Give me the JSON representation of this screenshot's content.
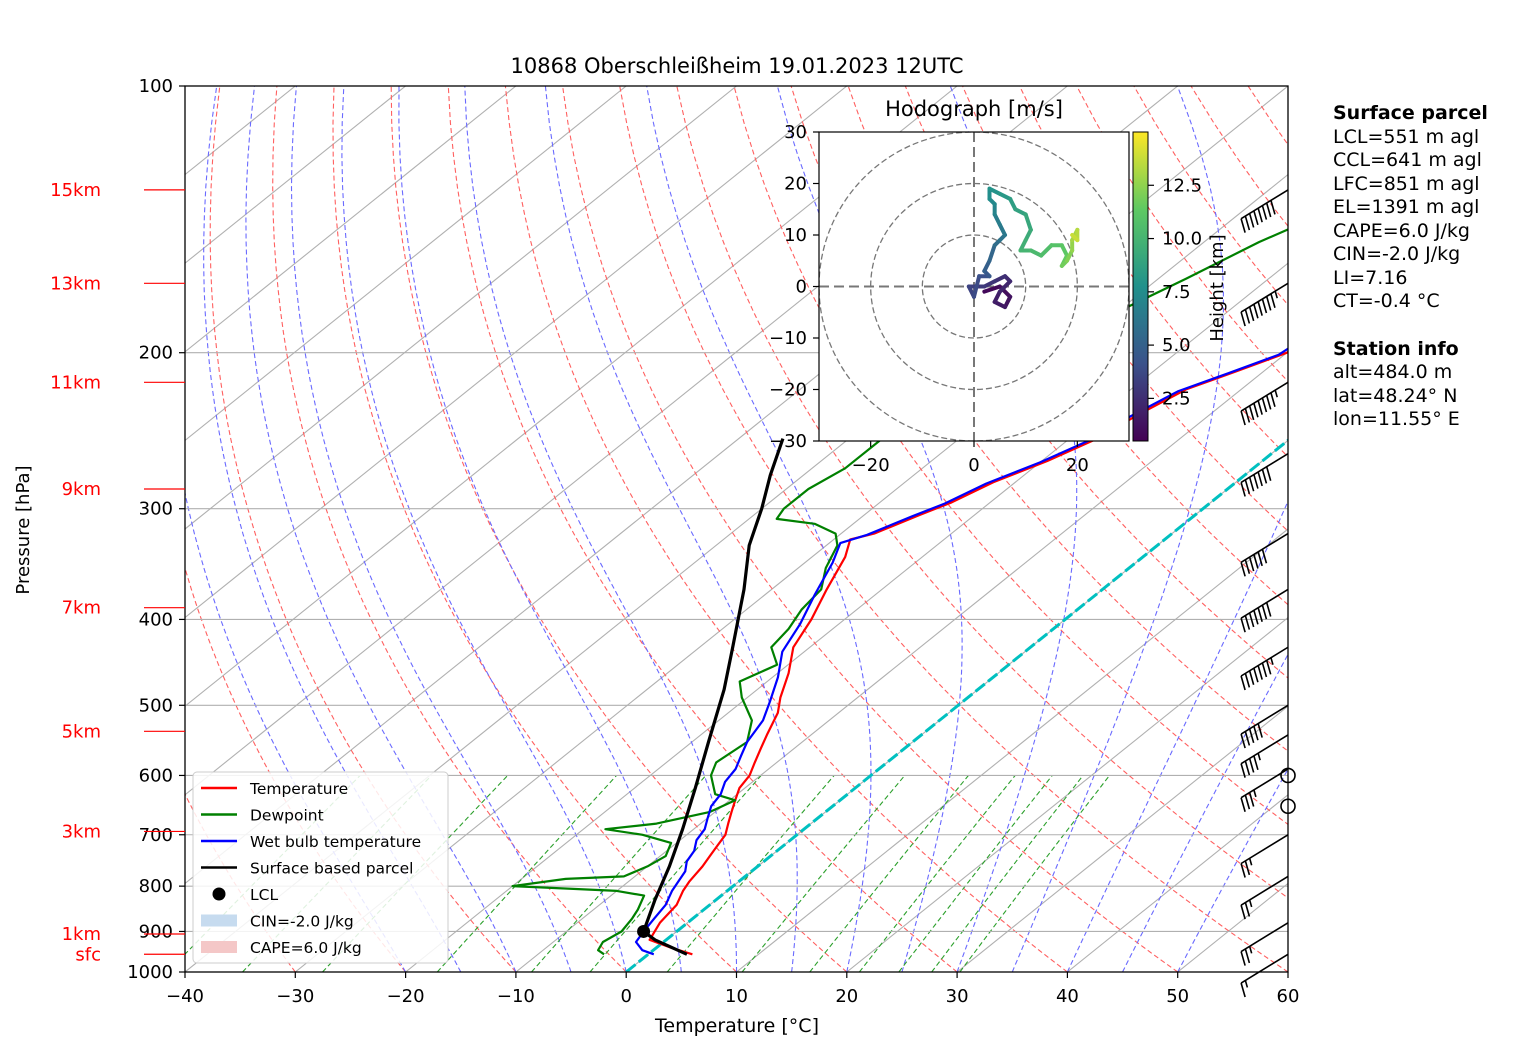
{
  "chart_data": {
    "type": "skew-t log-p",
    "title": "10868 Oberschleißheim 19.01.2023 12UTC",
    "xlabel": "Temperature [°C]",
    "ylabel": "Pressure [hPa]",
    "xlim": [
      -40,
      60
    ],
    "ylim": [
      1000,
      100
    ],
    "y_scale": "log",
    "x_ticks": [
      "−40",
      "−30",
      "−20",
      "−10",
      "0",
      "10",
      "20",
      "30",
      "40",
      "50",
      "60"
    ],
    "y_ticks": [
      "100",
      "200",
      "300",
      "400",
      "500",
      "600",
      "700",
      "800",
      "900",
      "1000"
    ],
    "height_labels": [
      {
        "label": "15km",
        "p": 131
      },
      {
        "label": "13km",
        "p": 167
      },
      {
        "label": "11km",
        "p": 216
      },
      {
        "label": "9km",
        "p": 285
      },
      {
        "label": "7km",
        "p": 388
      },
      {
        "label": "5km",
        "p": 535
      },
      {
        "label": "3km",
        "p": 694
      },
      {
        "label": "1km",
        "p": 906
      },
      {
        "label": "sfc",
        "p": 955
      }
    ],
    "series": [
      {
        "name": "Temperature",
        "color": "#ff0000",
        "points": [
          [
            4,
            955
          ],
          [
            1.5,
            940
          ],
          [
            -1.5,
            920
          ],
          [
            -2.5,
            880
          ],
          [
            -3,
            840
          ],
          [
            -4,
            810
          ],
          [
            -4.5,
            790
          ],
          [
            -5,
            760
          ],
          [
            -5.5,
            740
          ],
          [
            -6,
            720
          ],
          [
            -6.5,
            700
          ],
          [
            -7.5,
            680
          ],
          [
            -8.5,
            660
          ],
          [
            -9.5,
            640
          ],
          [
            -10.5,
            620
          ],
          [
            -11,
            600
          ],
          [
            -12,
            580
          ],
          [
            -13,
            560
          ],
          [
            -14,
            540
          ],
          [
            -15.5,
            510
          ],
          [
            -17,
            490
          ],
          [
            -19,
            460
          ],
          [
            -21.5,
            430
          ],
          [
            -23,
            400
          ],
          [
            -25,
            370
          ],
          [
            -27,
            340
          ],
          [
            -28.5,
            325
          ],
          [
            -27,
            320
          ],
          [
            -25,
            305
          ],
          [
            -23.5,
            295
          ],
          [
            -22,
            280
          ],
          [
            -19.5,
            265
          ],
          [
            -17.5,
            250
          ],
          [
            -16.5,
            235
          ],
          [
            -15,
            220
          ],
          [
            -12.5,
            210
          ],
          [
            -10,
            200
          ],
          [
            -9.5,
            190
          ],
          [
            -7.5,
            180
          ],
          [
            -6,
            170
          ],
          [
            -4.5,
            163
          ],
          [
            -3,
            158
          ],
          [
            -1,
            150
          ],
          [
            0.5,
            140
          ],
          [
            3,
            130
          ],
          [
            5,
            125
          ],
          [
            6.5,
            120
          ],
          [
            8.5,
            114
          ]
        ]
      },
      {
        "name": "Dewpoint",
        "color": "#008000",
        "points": [
          [
            -4,
            955
          ],
          [
            -5,
            945
          ],
          [
            -5.5,
            925
          ],
          [
            -5,
            900
          ],
          [
            -5.5,
            870
          ],
          [
            -6,
            850
          ],
          [
            -7,
            820
          ],
          [
            -10,
            810
          ],
          [
            -20,
            800
          ],
          [
            -16,
            785
          ],
          [
            -11,
            780
          ],
          [
            -10,
            760
          ],
          [
            -9.5,
            740
          ],
          [
            -10.5,
            715
          ],
          [
            -14,
            700
          ],
          [
            -18,
            690
          ],
          [
            -14,
            680
          ],
          [
            -10.5,
            660
          ],
          [
            -9.5,
            640
          ],
          [
            -12,
            630
          ],
          [
            -14.5,
            600
          ],
          [
            -15.5,
            580
          ],
          [
            -15,
            550
          ],
          [
            -17,
            520
          ],
          [
            -20.5,
            490
          ],
          [
            -22.5,
            470
          ],
          [
            -21,
            450
          ],
          [
            -23.5,
            430
          ],
          [
            -24,
            410
          ],
          [
            -25,
            390
          ],
          [
            -25.5,
            370
          ],
          [
            -27.5,
            350
          ],
          [
            -29,
            330
          ],
          [
            -30.5,
            320
          ],
          [
            -33.5,
            312
          ],
          [
            -37.5,
            308
          ],
          [
            -38,
            300
          ],
          [
            -38,
            285
          ],
          [
            -37,
            270
          ],
          [
            -37,
            250
          ],
          [
            -36,
            235
          ],
          [
            -34,
            220
          ],
          [
            -32,
            200
          ],
          [
            -30,
            180
          ],
          [
            -27.5,
            165
          ],
          [
            -25,
            150
          ],
          [
            -22.5,
            140
          ],
          [
            -20,
            133
          ],
          [
            -18,
            128
          ]
        ]
      },
      {
        "name": "Wet bulb temperature",
        "color": "#0000ff",
        "points": [
          [
            0.5,
            955
          ],
          [
            -1,
            945
          ],
          [
            -2.5,
            925
          ],
          [
            -3,
            900
          ],
          [
            -3.5,
            870
          ],
          [
            -4,
            840
          ],
          [
            -5,
            810
          ],
          [
            -5.5,
            790
          ],
          [
            -6,
            770
          ],
          [
            -7,
            750
          ],
          [
            -7.5,
            730
          ],
          [
            -8.5,
            710
          ],
          [
            -9,
            690
          ],
          [
            -10,
            670
          ],
          [
            -11,
            650
          ],
          [
            -11.5,
            630
          ],
          [
            -12.5,
            610
          ],
          [
            -13,
            590
          ],
          [
            -14,
            570
          ],
          [
            -15,
            550
          ],
          [
            -16,
            520
          ],
          [
            -17.5,
            495
          ],
          [
            -19.5,
            465
          ],
          [
            -22,
            435
          ],
          [
            -23.5,
            405
          ],
          [
            -25.5,
            375
          ],
          [
            -27.5,
            345
          ],
          [
            -29,
            328
          ],
          [
            -27.5,
            321
          ],
          [
            -25.5,
            306
          ],
          [
            -24,
            296
          ],
          [
            -22.5,
            281
          ],
          [
            -20,
            266
          ],
          [
            -18,
            251
          ],
          [
            -17,
            236
          ],
          [
            -15.5,
            221
          ],
          [
            -13,
            211
          ],
          [
            -10.5,
            201
          ],
          [
            -10,
            191
          ],
          [
            -8,
            181
          ],
          [
            -6.5,
            171
          ],
          [
            -5,
            164
          ],
          [
            -3.5,
            159
          ],
          [
            -1.5,
            151
          ],
          [
            0,
            141
          ],
          [
            2.5,
            131
          ],
          [
            4.5,
            126
          ],
          [
            6,
            121
          ],
          [
            8,
            115
          ]
        ]
      },
      {
        "name": "Surface based parcel",
        "color": "#000000",
        "points": [
          [
            3.5,
            955
          ],
          [
            -1,
            920
          ],
          [
            -3,
            900
          ],
          [
            -5.5,
            830
          ],
          [
            -8,
            760
          ],
          [
            -11,
            690
          ],
          [
            -14.5,
            620
          ],
          [
            -18.5,
            550
          ],
          [
            -23,
            480
          ],
          [
            -27,
            430
          ],
          [
            -32.5,
            370
          ],
          [
            -37,
            330
          ],
          [
            -40,
            300
          ],
          [
            -43,
            275
          ],
          [
            -46,
            250
          ]
        ]
      }
    ],
    "lcl": {
      "t": -3,
      "p": 900
    },
    "legend": {
      "placement": "lower-left",
      "entries": [
        {
          "label": "Temperature",
          "color": "#ff0000",
          "kind": "line"
        },
        {
          "label": "Dewpoint",
          "color": "#008000",
          "kind": "line"
        },
        {
          "label": "Wet bulb temperature",
          "color": "#0000ff",
          "kind": "line"
        },
        {
          "label": "Surface based parcel",
          "color": "#000000",
          "kind": "line"
        },
        {
          "label": "LCL",
          "color": "#000000",
          "kind": "dot"
        },
        {
          "label": "CIN=-2.0 J/kg",
          "color": "#c6dbef",
          "kind": "patch"
        },
        {
          "label": "CAPE=6.0 J/kg",
          "color": "#f4c7c7",
          "kind": "patch"
        }
      ]
    },
    "wind_barbs": [
      {
        "p": 131,
        "spd_kt": 80
      },
      {
        "p": 167,
        "spd_kt": 75
      },
      {
        "p": 216,
        "spd_kt": 75
      },
      {
        "p": 260,
        "spd_kt": 70
      },
      {
        "p": 320,
        "spd_kt": 60
      },
      {
        "p": 370,
        "spd_kt": 70
      },
      {
        "p": 430,
        "spd_kt": 65
      },
      {
        "p": 500,
        "spd_kt": 50
      },
      {
        "p": 540,
        "spd_kt": 35
      },
      {
        "p": 590,
        "spd_kt": 25
      },
      {
        "p": 600,
        "spd_kt": 0
      },
      {
        "p": 650,
        "spd_kt": 0
      },
      {
        "p": 700,
        "spd_kt": 15
      },
      {
        "p": 780,
        "spd_kt": 15
      },
      {
        "p": 880,
        "spd_kt": 15
      },
      {
        "p": 955,
        "spd_kt": 5
      }
    ],
    "hodograph": {
      "title": "Hodograph [m/s]",
      "xlim": [
        -30,
        30
      ],
      "ylim": [
        -30,
        30
      ],
      "x_ticks": [
        "−20",
        "0",
        "20"
      ],
      "y_ticks": [
        "30",
        "20",
        "10",
        "0",
        "−10",
        "−20",
        "−30"
      ],
      "colorbar_label": "Height [km]",
      "colorbar_ticks": [
        "2.5",
        "5.0",
        "7.5",
        "10.0",
        "12.5"
      ],
      "z_range": [
        0.5,
        15
      ],
      "trace": [
        [
          2,
          -1,
          0.5
        ],
        [
          5,
          0,
          0.8
        ],
        [
          7,
          -2,
          1.1
        ],
        [
          6,
          -4,
          1.3
        ],
        [
          4,
          -3,
          1.6
        ],
        [
          5,
          -1,
          1.8
        ],
        [
          7,
          1,
          2.1
        ],
        [
          6,
          2,
          2.3
        ],
        [
          4,
          1,
          2.6
        ],
        [
          2,
          0,
          2.8
        ],
        [
          0,
          0,
          3.0
        ],
        [
          -1,
          0,
          3.3
        ],
        [
          0,
          -2,
          3.5
        ],
        [
          1,
          2,
          3.8
        ],
        [
          3,
          2,
          4.1
        ],
        [
          2,
          3,
          4.5
        ],
        [
          3,
          5,
          4.9
        ],
        [
          4,
          8,
          5.3
        ],
        [
          5,
          9,
          5.7
        ],
        [
          6,
          10,
          6.0
        ],
        [
          5,
          12,
          6.3
        ],
        [
          4,
          14,
          6.6
        ],
        [
          4,
          16,
          7.0
        ],
        [
          3,
          17,
          7.3
        ],
        [
          3,
          19,
          7.6
        ],
        [
          5,
          18,
          7.9
        ],
        [
          7,
          17,
          8.2
        ],
        [
          8,
          15,
          8.5
        ],
        [
          10,
          14,
          8.8
        ],
        [
          11,
          11,
          9.1
        ],
        [
          10,
          9,
          9.4
        ],
        [
          9,
          7,
          9.7
        ],
        [
          11,
          7,
          10.0
        ],
        [
          13,
          6,
          10.3
        ],
        [
          15,
          8,
          10.6
        ],
        [
          17,
          8,
          10.9
        ],
        [
          18,
          6,
          11.2
        ],
        [
          17,
          4,
          11.5
        ],
        [
          18,
          5,
          11.8
        ],
        [
          19,
          7,
          12.2
        ],
        [
          19,
          9,
          12.6
        ],
        [
          20,
          11,
          13.0
        ],
        [
          20,
          9,
          13.4
        ],
        [
          19,
          10,
          13.8
        ]
      ]
    },
    "colors": {
      "temperature": "#ff0000",
      "dewpoint": "#008000",
      "wetbulb": "#0000ff",
      "parcel": "#000000",
      "dry_adiabat": "#ff6060",
      "moist_adiabat": "#6a6aff",
      "mixing_ratio": "#2ca02c",
      "isotherm": "#b0b0b0",
      "zero_isotherm": "#00c0c0",
      "height_label": "#ff0000"
    }
  },
  "info_panel": {
    "surface_heading": "Surface parcel",
    "surface_lines": [
      "LCL=551 m agl",
      "CCL=641 m agl",
      "LFC=851 m agl",
      "EL=1391 m agl",
      "CAPE=6.0 J/kg",
      "CIN=-2.0 J/kg",
      "LI=7.16",
      "CT=-0.4 °C"
    ],
    "station_heading": "Station info",
    "station_lines": [
      "alt=484.0 m",
      "lat=48.24° N",
      "lon=11.55° E"
    ]
  }
}
